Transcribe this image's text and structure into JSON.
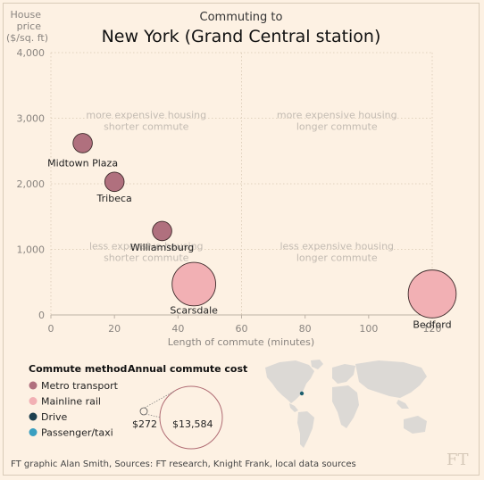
{
  "chart_data": {
    "type": "scatter",
    "title_small": "Commuting to",
    "title": "New York (Grand Central station)",
    "ylabel_lines": [
      "House",
      "price",
      "($/sq. ft)"
    ],
    "xlabel": "Length of commute (minutes)",
    "xlim": [
      0,
      120
    ],
    "ylim": [
      0,
      4000
    ],
    "xticks": [
      0,
      20,
      40,
      60,
      80,
      100,
      120
    ],
    "xtick_labels": [
      "0",
      "20",
      "40",
      "60",
      "80",
      "100",
      "120"
    ],
    "yticks": [
      0,
      1000,
      2000,
      3000,
      4000
    ],
    "ytick_labels": [
      "0",
      "1,000",
      "2,000",
      "3,000",
      "4,000"
    ],
    "grid": "dotted",
    "quadrants": {
      "top_left": [
        "more expensive housing",
        "shorter commute"
      ],
      "top_right": [
        "more expensive housing",
        "longer commute"
      ],
      "bottom_left": [
        "less expensive housing",
        "shorter commute"
      ],
      "bottom_right": [
        "less expensive housing",
        "longer commute"
      ]
    },
    "points": [
      {
        "label": "Midtown Plaza",
        "x": 10,
        "y": 2620,
        "method": "Metro transport",
        "cost": 1300
      },
      {
        "label": "Tribeca",
        "x": 20,
        "y": 2030,
        "method": "Metro transport",
        "cost": 1300
      },
      {
        "label": "Williamsburg",
        "x": 35,
        "y": 1280,
        "method": "Metro transport",
        "cost": 1300
      },
      {
        "label": "Scarsdale",
        "x": 45,
        "y": 470,
        "method": "Mainline rail",
        "cost": 6600
      },
      {
        "label": "Bedford",
        "x": 120,
        "y": 320,
        "method": "Mainline rail",
        "cost": 8000
      }
    ]
  },
  "legend": {
    "title": "Commute method",
    "items": [
      {
        "label": "Metro transport",
        "color": "#b0707e"
      },
      {
        "label": "Mainline rail",
        "color": "#f2b0b4"
      },
      {
        "label": "Drive",
        "color": "#1d3f4e"
      },
      {
        "label": "Passenger/taxi",
        "color": "#3a9fc0"
      }
    ]
  },
  "size_legend": {
    "title": "Annual commute cost",
    "small_label": "$272",
    "large_label": "$13,584",
    "small_value": 272,
    "large_value": 13584
  },
  "map": {
    "marker_color": "#1d5f6e"
  },
  "footer": "FT graphic Alan Smith, Sources: FT research, Knight Frank, local data sources",
  "logo": "FT"
}
